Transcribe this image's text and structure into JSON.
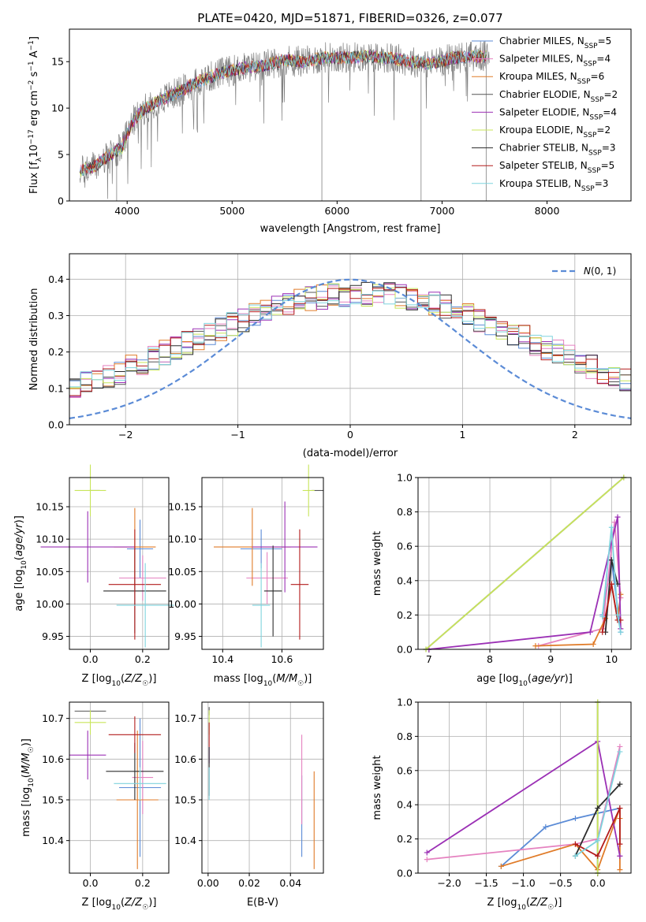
{
  "figure": {
    "title": "PLATE=0420, MJD=51871, FIBERID=0326, z=0.077"
  },
  "colors": {
    "Chabrier MILES": "#5b8bd6",
    "Salpeter MILES": "#e582c0",
    "Kroupa MILES": "#e07b28",
    "Chabrier ELODIE": "#555555",
    "Salpeter ELODIE": "#9b30b5",
    "Kroupa ELODIE": "#c8e55a",
    "Chabrier STELIB": "#2b2b2b",
    "Salpeter STELIB": "#b31b1b",
    "Kroupa STELIB": "#7fd3dd",
    "normal": "#5b8bd6",
    "spectrum": "#808080"
  },
  "chart_data": [
    {
      "type": "line",
      "id": "spectrum",
      "xlabel": "wavelength [Angstrom, rest frame]",
      "ylabel": "Flux [f_λ 10^-17 erg cm^-2 s^-1 A^-1]",
      "xlim": [
        3450,
        8800
      ],
      "ylim": [
        0,
        18.5
      ],
      "xticks": [
        4000,
        5000,
        6000,
        7000,
        8000
      ],
      "yticks": [
        0,
        5,
        10,
        15
      ],
      "grid": false,
      "legend_position": "top-right",
      "legend": [
        {
          "label": "Chabrier MILES, N_SSP=5",
          "prefix": "Chabrier MILES, N",
          "sub": "SSP",
          "suffix": "=5",
          "series": "Chabrier MILES"
        },
        {
          "label": "Salpeter MILES, N_SSP=4",
          "prefix": "Salpeter MILES, N",
          "sub": "SSP",
          "suffix": "=4",
          "series": "Salpeter MILES"
        },
        {
          "label": "Kroupa MILES, N_SSP=6",
          "prefix": "Kroupa MILES, N",
          "sub": "SSP",
          "suffix": "=6",
          "series": "Kroupa MILES"
        },
        {
          "label": "Chabrier ELODIE, N_SSP=2",
          "prefix": "Chabrier ELODIE, N",
          "sub": "SSP",
          "suffix": "=2",
          "series": "Chabrier ELODIE"
        },
        {
          "label": "Salpeter ELODIE, N_SSP=4",
          "prefix": "Salpeter ELODIE, N",
          "sub": "SSP",
          "suffix": "=4",
          "series": "Salpeter ELODIE"
        },
        {
          "label": "Kroupa ELODIE, N_SSP=2",
          "prefix": "Kroupa ELODIE, N",
          "sub": "SSP",
          "suffix": "=2",
          "series": "Kroupa ELODIE"
        },
        {
          "label": "Chabrier STELIB, N_SSP=3",
          "prefix": "Chabrier STELIB, N",
          "sub": "SSP",
          "suffix": "=3",
          "series": "Chabrier STELIB"
        },
        {
          "label": "Salpeter STELIB, N_SSP=5",
          "prefix": "Salpeter STELIB, N",
          "sub": "SSP",
          "suffix": "=5",
          "series": "Salpeter STELIB"
        },
        {
          "label": "Kroupa STELIB, N_SSP=3",
          "prefix": "Kroupa STELIB, N",
          "sub": "SSP",
          "suffix": "=3",
          "series": "Kroupa STELIB"
        }
      ],
      "continuum": {
        "x": [
          3550,
          3700,
          3850,
          3950,
          4050,
          4150,
          4300,
          4500,
          4700,
          4900,
          5100,
          5300,
          5500,
          5700,
          5900,
          6100,
          6300,
          6500,
          6700,
          6900,
          7100,
          7300,
          7450
        ],
        "y": [
          3.2,
          3.8,
          5.0,
          5.8,
          8.5,
          9.8,
          10.8,
          11.8,
          13.0,
          13.8,
          14.3,
          14.6,
          15.2,
          15.0,
          15.5,
          15.4,
          15.6,
          15.4,
          15.0,
          14.8,
          15.4,
          15.6,
          15.5
        ]
      },
      "model_range": [
        3550,
        7420
      ]
    },
    {
      "type": "histogram",
      "id": "residuals",
      "xlabel": "(data-model)/error",
      "ylabel": "Normed distribution",
      "xlim": [
        -2.5,
        2.5
      ],
      "ylim": [
        0,
        0.47
      ],
      "xticks": [
        -2,
        -1,
        0,
        1,
        2
      ],
      "yticks": [
        0.0,
        0.1,
        0.2,
        0.3,
        0.4
      ],
      "grid": true,
      "legend_position": "top-right",
      "normal_label": "N(0,1)",
      "bin_edges": [
        -2.5,
        2.5
      ],
      "bins": 50
    },
    {
      "type": "errorbar",
      "id": "age_vs_Z",
      "xlabel": "Z [log10(Z/Z☉)]",
      "ylabel": "age [log10(age/yr)]",
      "xlim": [
        -0.08,
        0.3
      ],
      "ylim": [
        9.93,
        10.195
      ],
      "xticks": [
        0.0,
        0.2
      ],
      "yticks": [
        9.95,
        10.0,
        10.05,
        10.1,
        10.15
      ],
      "grid": true,
      "points": [
        {
          "series": "Chabrier MILES",
          "x": 0.19,
          "y": 10.085,
          "xerr": 0.05,
          "yerr": 0.045
        },
        {
          "series": "Salpeter MILES",
          "x": 0.2,
          "y": 10.04,
          "xerr": 0.09,
          "yerr": 0.035
        },
        {
          "series": "Kroupa MILES",
          "x": 0.17,
          "y": 10.088,
          "xerr": 0.08,
          "yerr": 0.06
        },
        {
          "series": "Chabrier ELODIE",
          "x": 0.0,
          "y": 10.175,
          "xerr": 0.0,
          "yerr": 0.0
        },
        {
          "series": "Salpeter ELODIE",
          "x": -0.01,
          "y": 10.088,
          "xerr": 0.18,
          "yerr": 0.055
        },
        {
          "series": "Kroupa ELODIE",
          "x": 0.0,
          "y": 10.175,
          "xerr": 0.06,
          "yerr": 0.04
        },
        {
          "series": "Chabrier STELIB",
          "x": 0.17,
          "y": 10.02,
          "xerr": 0.12,
          "yerr": 0.065
        },
        {
          "series": "Salpeter STELIB",
          "x": 0.17,
          "y": 10.03,
          "xerr": 0.1,
          "yerr": 0.085
        },
        {
          "series": "Kroupa STELIB",
          "x": 0.21,
          "y": 9.998,
          "xerr": 0.11,
          "yerr": 0.065
        }
      ]
    },
    {
      "type": "errorbar",
      "id": "age_vs_mass",
      "xlabel": "mass [log10(M/M☉)]",
      "ylabel": "",
      "xlim": [
        10.33,
        10.74
      ],
      "ylim": [
        9.93,
        10.195
      ],
      "xticks": [
        10.4,
        10.6
      ],
      "yticks": [
        9.95,
        10.0,
        10.05,
        10.1,
        10.15
      ],
      "grid": true,
      "points": [
        {
          "series": "Chabrier MILES",
          "x": 10.53,
          "y": 10.085,
          "xerr": 0.07,
          "yerr": 0.03
        },
        {
          "series": "Salpeter MILES",
          "x": 10.55,
          "y": 10.04,
          "xerr": 0.07,
          "yerr": 0.04
        },
        {
          "series": "Kroupa MILES",
          "x": 10.5,
          "y": 10.088,
          "xerr": 0.13,
          "yerr": 0.06
        },
        {
          "series": "Chabrier ELODIE",
          "x": 10.72,
          "y": 10.175,
          "xerr": 0.02,
          "yerr": 0.0
        },
        {
          "series": "Salpeter ELODIE",
          "x": 10.61,
          "y": 10.088,
          "xerr": 0.11,
          "yerr": 0.07
        },
        {
          "series": "Kroupa ELODIE",
          "x": 10.69,
          "y": 10.175,
          "xerr": 0.02,
          "yerr": 0.04
        },
        {
          "series": "Chabrier STELIB",
          "x": 10.57,
          "y": 10.02,
          "xerr": 0.03,
          "yerr": 0.07
        },
        {
          "series": "Salpeter STELIB",
          "x": 10.66,
          "y": 10.03,
          "xerr": 0.03,
          "yerr": 0.085
        },
        {
          "series": "Kroupa STELIB",
          "x": 10.53,
          "y": 9.998,
          "xerr": 0.03,
          "yerr": 0.065
        }
      ]
    },
    {
      "type": "line",
      "id": "massweight_vs_age",
      "xlabel": "age [log10(age/yr)]",
      "ylabel": "mass weight",
      "xlim": [
        6.82,
        10.32
      ],
      "ylim": [
        0,
        1.0
      ],
      "xticks": [
        7,
        8,
        9,
        10
      ],
      "yticks": [
        0.0,
        0.2,
        0.4,
        0.6,
        0.8,
        1.0
      ],
      "grid": true,
      "series": [
        {
          "name": "Chabrier MILES",
          "x": [
            9.85,
            10.0,
            10.15
          ],
          "y": [
            0.2,
            0.52,
            0.1
          ]
        },
        {
          "name": "Salpeter MILES",
          "x": [
            8.8,
            9.85,
            10.05,
            10.15
          ],
          "y": [
            0.02,
            0.12,
            0.74,
            0.3
          ]
        },
        {
          "name": "Kroupa MILES",
          "x": [
            8.75,
            9.7,
            9.9,
            10.0,
            10.1,
            10.15
          ],
          "y": [
            0.02,
            0.03,
            0.18,
            0.38,
            0.17,
            0.32
          ]
        },
        {
          "name": "Chabrier ELODIE",
          "x": [
            6.95,
            10.2
          ],
          "y": [
            0.0,
            1.0
          ]
        },
        {
          "name": "Salpeter ELODIE",
          "x": [
            7.0,
            9.65,
            10.1,
            10.15
          ],
          "y": [
            0.0,
            0.1,
            0.77,
            0.12
          ]
        },
        {
          "name": "Kroupa ELODIE",
          "x": [
            6.95,
            10.2
          ],
          "y": [
            0.0,
            1.0
          ]
        },
        {
          "name": "Chabrier STELIB",
          "x": [
            9.9,
            10.0,
            10.1
          ],
          "y": [
            0.1,
            0.52,
            0.38
          ]
        },
        {
          "name": "Salpeter STELIB",
          "x": [
            9.85,
            10.0,
            10.1,
            10.15
          ],
          "y": [
            0.1,
            0.38,
            0.17,
            0.17
          ]
        },
        {
          "name": "Kroupa STELIB",
          "x": [
            9.85,
            10.0,
            10.1,
            10.15
          ],
          "y": [
            0.19,
            0.71,
            0.2,
            0.1
          ]
        }
      ]
    },
    {
      "type": "errorbar",
      "id": "mass_vs_Z",
      "xlabel": "Z [log10(Z/Z☉)]",
      "ylabel": "mass [log10(M/M☉)]",
      "xlim": [
        -0.08,
        0.3
      ],
      "ylim": [
        10.32,
        10.74
      ],
      "xticks": [
        0.0,
        0.2
      ],
      "yticks": [
        10.4,
        10.5,
        10.6,
        10.7
      ],
      "grid": true,
      "points": [
        {
          "series": "Chabrier MILES",
          "x": 0.19,
          "y": 10.53,
          "xerr": 0.08,
          "yerr": 0.17
        },
        {
          "series": "Salpeter MILES",
          "x": 0.2,
          "y": 10.555,
          "xerr": 0.04,
          "yerr": 0.09
        },
        {
          "series": "Kroupa MILES",
          "x": 0.18,
          "y": 10.5,
          "xerr": 0.08,
          "yerr": 0.17
        },
        {
          "series": "Chabrier ELODIE",
          "x": 0.0,
          "y": 10.718,
          "xerr": 0.06,
          "yerr": 0.0
        },
        {
          "series": "Salpeter ELODIE",
          "x": -0.01,
          "y": 10.61,
          "xerr": 0.07,
          "yerr": 0.06
        },
        {
          "series": "Kroupa ELODIE",
          "x": 0.0,
          "y": 10.69,
          "xerr": 0.06,
          "yerr": 0.03
        },
        {
          "series": "Chabrier STELIB",
          "x": 0.17,
          "y": 10.57,
          "xerr": 0.11,
          "yerr": 0.07
        },
        {
          "series": "Salpeter STELIB",
          "x": 0.17,
          "y": 10.66,
          "xerr": 0.1,
          "yerr": 0.045
        },
        {
          "series": "Kroupa STELIB",
          "x": 0.19,
          "y": 10.54,
          "xerr": 0.1,
          "yerr": 0.04
        }
      ]
    },
    {
      "type": "errorbar",
      "id": "mass_vs_ebv",
      "xlabel": "E(B-V)",
      "ylabel": "",
      "xlim": [
        -0.003,
        0.056
      ],
      "ylim": [
        10.32,
        10.74
      ],
      "xticks": [
        0.0,
        0.02,
        0.04
      ],
      "yticks": [
        10.4,
        10.5,
        10.6,
        10.7
      ],
      "grid": true,
      "points": [
        {
          "series": "Chabrier MILES",
          "x": 0.0455,
          "y": 10.46,
          "xerr": 0.0,
          "yerr": 0.1
        },
        {
          "series": "Salpeter MILES",
          "x": 0.0455,
          "y": 10.55,
          "xerr": 0.0,
          "yerr": 0.11
        },
        {
          "series": "Kroupa MILES",
          "x": 0.0515,
          "y": 10.45,
          "xerr": 0.0,
          "yerr": 0.12
        },
        {
          "series": "Chabrier ELODIE",
          "x": 0.0005,
          "y": 10.718,
          "xerr": 0.0,
          "yerr": 0.01
        },
        {
          "series": "Salpeter ELODIE",
          "x": 0.0005,
          "y": 10.61,
          "xerr": 0.0,
          "yerr": 0.02
        },
        {
          "series": "Kroupa ELODIE",
          "x": 0.0005,
          "y": 10.69,
          "xerr": 0.0,
          "yerr": 0.03
        },
        {
          "series": "Chabrier STELIB",
          "x": 0.0005,
          "y": 10.57,
          "xerr": 0.0,
          "yerr": 0.06
        },
        {
          "series": "Salpeter STELIB",
          "x": 0.0005,
          "y": 10.66,
          "xerr": 0.0,
          "yerr": 0.03
        },
        {
          "series": "Kroupa STELIB",
          "x": 0.0005,
          "y": 10.54,
          "xerr": 0.0,
          "yerr": 0.04
        }
      ]
    },
    {
      "type": "line",
      "id": "massweight_vs_Z",
      "xlabel": "Z [log10(Z/Z☉)]",
      "ylabel": "mass weight",
      "xlim": [
        -2.42,
        0.45
      ],
      "ylim": [
        0,
        1.0
      ],
      "xticks": [
        -2.0,
        -1.5,
        -1.0,
        -0.5,
        0.0
      ],
      "yticks": [
        0.0,
        0.2,
        0.4,
        0.6,
        0.8,
        1.0
      ],
      "grid": true,
      "series": [
        {
          "name": "Chabrier MILES",
          "x": [
            -1.3,
            -0.7,
            -0.3,
            0.3
          ],
          "y": [
            0.04,
            0.27,
            0.32,
            0.38
          ]
        },
        {
          "name": "Salpeter MILES",
          "x": [
            -2.3,
            -0.3,
            0.0,
            0.3
          ],
          "y": [
            0.08,
            0.17,
            0.2,
            0.74
          ]
        },
        {
          "name": "Kroupa MILES",
          "x": [
            -1.3,
            -0.3,
            0.0,
            0.3,
            0.3,
            0.3
          ],
          "y": [
            0.04,
            0.17,
            0.02,
            0.38,
            0.02,
            0.32
          ]
        },
        {
          "name": "Chabrier ELODIE",
          "x": [
            0.0,
            0.0
          ],
          "y": [
            0.0,
            1.0
          ]
        },
        {
          "name": "Salpeter ELODIE",
          "x": [
            -2.3,
            -0.0,
            0.3,
            0.3
          ],
          "y": [
            0.12,
            0.77,
            0.1,
            0.1
          ]
        },
        {
          "name": "Kroupa ELODIE",
          "x": [
            0.0,
            0.0
          ],
          "y": [
            0.0,
            1.0
          ]
        },
        {
          "name": "Chabrier STELIB",
          "x": [
            -0.3,
            0.0,
            0.3
          ],
          "y": [
            0.1,
            0.38,
            0.52
          ]
        },
        {
          "name": "Salpeter STELIB",
          "x": [
            -0.3,
            0.0,
            0.3,
            0.3
          ],
          "y": [
            0.17,
            0.1,
            0.38,
            0.17
          ]
        },
        {
          "name": "Kroupa STELIB",
          "x": [
            -0.3,
            0.0,
            0.3
          ],
          "y": [
            0.1,
            0.19,
            0.71
          ]
        }
      ]
    }
  ]
}
